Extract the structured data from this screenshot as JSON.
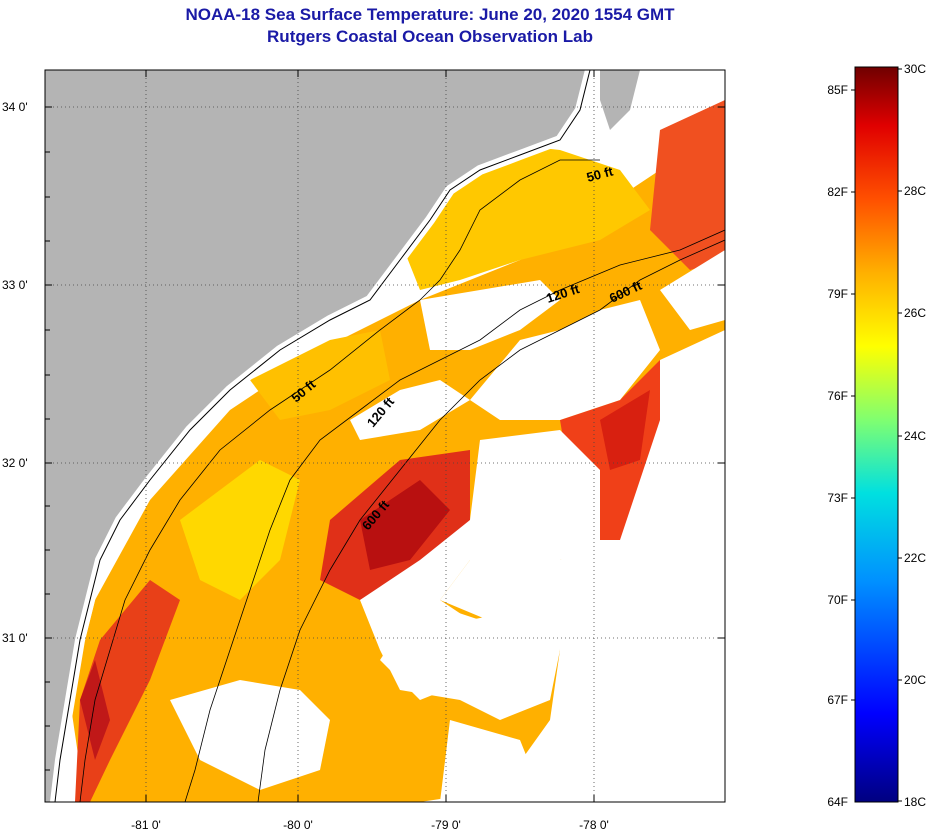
{
  "title_line1": "NOAA-18 Sea Surface Temperature:  June 20, 2020 1554 GMT",
  "title_line2": "Rutgers Coastal Ocean Observation Lab",
  "lat_labels": [
    "34 0'",
    "33 0'",
    "32 0'",
    "31 0'"
  ],
  "lon_labels": [
    "-81 0'",
    "-80 0'",
    "-79 0'",
    "-78 0'"
  ],
  "contour_labels": [
    "50 ft",
    "120 ft",
    "600 ft",
    "50 ft",
    "120 ft",
    "600 ft"
  ],
  "colorbar": {
    "fahrenheit": [
      "85F",
      "82F",
      "79F",
      "76F",
      "73F",
      "70F",
      "67F",
      "64F"
    ],
    "celsius": [
      "30C",
      "28C",
      "26C",
      "24C",
      "22C",
      "20C",
      "18C"
    ]
  },
  "colors": {
    "land": "#b4b4b4",
    "cloud": "#ffffff",
    "title": "#1a1aa6",
    "warm": "#e8301c",
    "hot": "#b01010",
    "mid": "#ffb000",
    "cool": "#ffe000"
  }
}
